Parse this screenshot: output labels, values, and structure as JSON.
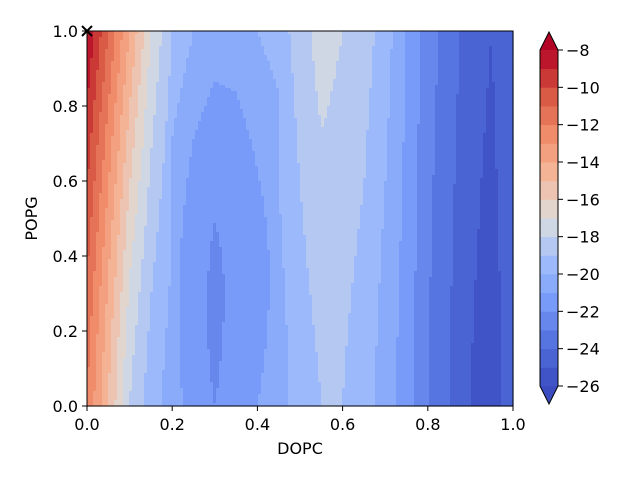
{
  "chart_data": {
    "type": "heatmap",
    "subtype": "filled-contour",
    "xlabel": "DOPC",
    "ylabel": "POPG",
    "xlim": [
      0.0,
      1.0
    ],
    "ylim": [
      0.0,
      1.0
    ],
    "x_ticks": [
      "0.0",
      "0.2",
      "0.4",
      "0.6",
      "0.8",
      "1.0"
    ],
    "y_ticks": [
      "0.0",
      "0.2",
      "0.4",
      "0.6",
      "0.8",
      "1.0"
    ],
    "colormap": "coolwarm",
    "colorbar": {
      "ticks": [
        "−8",
        "−10",
        "−12",
        "−14",
        "−16",
        "−18",
        "−20",
        "−22",
        "−24",
        "−26"
      ],
      "levels_min": -26,
      "levels_max": -8,
      "level_step": 1,
      "extend": "both"
    },
    "marker": {
      "symbol": "x",
      "x": 0.0,
      "y": 1.0
    },
    "column_profile": {
      "x": [
        0.0,
        0.05,
        0.1,
        0.15,
        0.2,
        0.25,
        0.3,
        0.35,
        0.4,
        0.45,
        0.5,
        0.55,
        0.6,
        0.65,
        0.7,
        0.75,
        0.8,
        0.85,
        0.9,
        0.95,
        1.0
      ],
      "y_0": [
        -12,
        -15,
        -18,
        -19.5,
        -20.5,
        -21.5,
        -22,
        -21.5,
        -21,
        -20.5,
        -19.5,
        -19,
        -19,
        -19.5,
        -20.5,
        -21.5,
        -23,
        -24,
        -25,
        -25.5,
        -24.5
      ],
      "y_1": [
        -8,
        -11,
        -14,
        -17,
        -19,
        -20,
        -20.5,
        -20.5,
        -20,
        -19.5,
        -18.5,
        -17.5,
        -18,
        -18.5,
        -19.5,
        -21,
        -22.5,
        -23.5,
        -24.5,
        -25,
        -24
      ]
    },
    "colors": {
      "low": "#3b4cc0",
      "mid": "#dddddd",
      "high": "#b40426"
    }
  }
}
